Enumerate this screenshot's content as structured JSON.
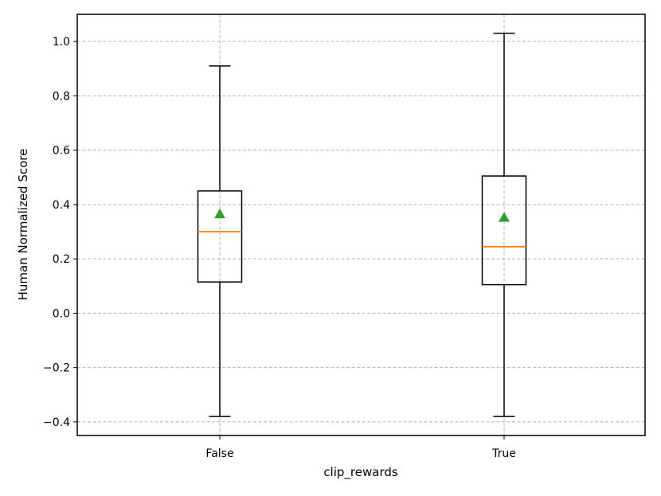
{
  "chart_data": {
    "type": "box",
    "title": "",
    "xlabel": "clip_rewards",
    "ylabel": "Human Normalized Score",
    "ylim": [
      -0.45,
      1.1
    ],
    "y_ticks": [
      -0.4,
      -0.2,
      0.0,
      0.2,
      0.4,
      0.6,
      0.8,
      1.0
    ],
    "y_tick_labels": [
      "−0.4",
      "−0.2",
      "0.0",
      "0.2",
      "0.4",
      "0.6",
      "0.8",
      "1.0"
    ],
    "grid": true,
    "categories": [
      "False",
      "True"
    ],
    "boxes": [
      {
        "category": "False",
        "whisker_low": -0.38,
        "q1": 0.115,
        "median": 0.3,
        "q3": 0.45,
        "whisker_high": 0.91,
        "mean": 0.365
      },
      {
        "category": "True",
        "whisker_low": -0.38,
        "q1": 0.105,
        "median": 0.245,
        "q3": 0.505,
        "whisker_high": 1.03,
        "mean": 0.352
      }
    ],
    "colors": {
      "box": "#000000",
      "median": "#ff7f0e",
      "mean": "#2ca02c",
      "grid": "#b0b0b0"
    }
  }
}
